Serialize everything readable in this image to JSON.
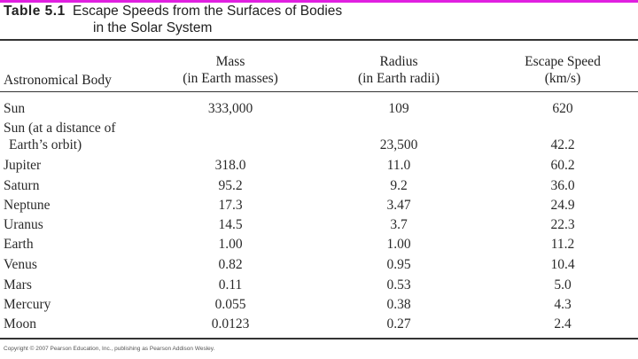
{
  "table": {
    "label": "Table 5.1",
    "title_line1": "Escape Speeds from the Surfaces of Bodies",
    "title_line2": "in the Solar System",
    "headers": {
      "body": "Astronomical Body",
      "mass_1": "Mass",
      "mass_2": "(in Earth masses)",
      "radius_1": "Radius",
      "radius_2": "(in Earth radii)",
      "speed_1": "Escape Speed",
      "speed_2": "(km/s)"
    },
    "sun_orbit_line1": "Sun (at a distance of",
    "sun_orbit_line2": "Earth’s orbit)",
    "rows": [
      {
        "body": "Sun",
        "mass": "333,000",
        "radius": "109",
        "speed": "620"
      },
      {
        "body": "Sun (at a distance of Earth’s orbit)",
        "mass": "",
        "radius": "23,500",
        "speed": "42.2"
      },
      {
        "body": "Jupiter",
        "mass": "318.0",
        "radius": "11.0",
        "speed": "60.2"
      },
      {
        "body": "Saturn",
        "mass": "95.2",
        "radius": "9.2",
        "speed": "36.0"
      },
      {
        "body": "Neptune",
        "mass": "17.3",
        "radius": "3.47",
        "speed": "24.9"
      },
      {
        "body": "Uranus",
        "mass": "14.5",
        "radius": "3.7",
        "speed": "22.3"
      },
      {
        "body": "Earth",
        "mass": "1.00",
        "radius": "1.00",
        "speed": "11.2"
      },
      {
        "body": "Venus",
        "mass": "0.82",
        "radius": "0.95",
        "speed": "10.4"
      },
      {
        "body": "Mars",
        "mass": "0.11",
        "radius": "0.53",
        "speed": "5.0"
      },
      {
        "body": "Mercury",
        "mass": "0.055",
        "radius": "0.38",
        "speed": "4.3"
      },
      {
        "body": "Moon",
        "mass": "0.0123",
        "radius": "0.27",
        "speed": "2.4"
      }
    ]
  },
  "footer": {
    "copyright": "Copyright © 2007 Pearson Education, Inc., publishing as Pearson Addison Wesley."
  },
  "colors": {
    "accent_bar": "#e020e0",
    "rule": "#333333",
    "text": "#2a2a2a"
  }
}
